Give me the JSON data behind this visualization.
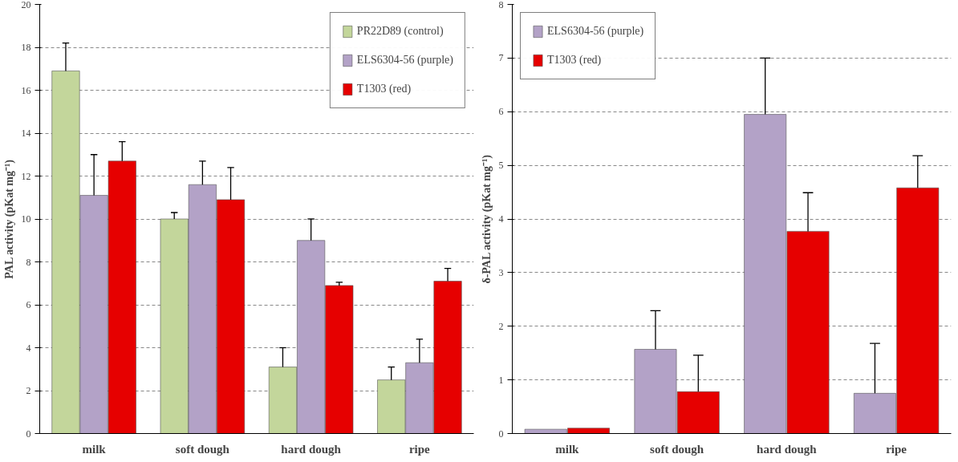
{
  "chart_data": [
    {
      "type": "bar",
      "ylabel": "PAL activity (pKat mg⁻¹)",
      "categories": [
        "milk",
        "soft dough",
        "hard dough",
        "ripe"
      ],
      "ylim": [
        0,
        20
      ],
      "yticks": [
        0,
        2,
        4,
        6,
        8,
        10,
        12,
        14,
        16,
        18,
        20
      ],
      "grid": "y",
      "legend": "top right",
      "series": [
        {
          "name": "PR22D89 (control)",
          "color": "#c3d69b",
          "values": [
            16.9,
            10.0,
            3.1,
            2.5
          ],
          "errors": [
            [
              16.9,
              18.2
            ],
            [
              10.0,
              10.3
            ],
            [
              3.1,
              4.0
            ],
            [
              2.5,
              3.1
            ]
          ]
        },
        {
          "name": "ELS6304-56 (purple)",
          "color": "#b3a2c7",
          "values": [
            11.1,
            11.6,
            9.0,
            3.3
          ],
          "errors": [
            [
              11.1,
              13.0
            ],
            [
              11.6,
              12.7
            ],
            [
              9.0,
              10.0
            ],
            [
              3.3,
              4.4
            ]
          ]
        },
        {
          "name": "T1303 (red)",
          "color": "#e60000",
          "values": [
            12.7,
            10.9,
            6.9,
            7.1
          ],
          "errors": [
            [
              12.7,
              13.6
            ],
            [
              10.9,
              12.4
            ],
            [
              6.9,
              7.05
            ],
            [
              7.1,
              7.7
            ]
          ]
        }
      ]
    },
    {
      "type": "bar",
      "ylabel": "δ-PAL activity (pKat mg⁻¹)",
      "categories": [
        "milk",
        "soft dough",
        "hard dough",
        "ripe"
      ],
      "ylim": [
        0,
        8
      ],
      "yticks": [
        0,
        1,
        2,
        3,
        4,
        5,
        6,
        7,
        8
      ],
      "grid": "y",
      "legend": "top left",
      "series": [
        {
          "name": "ELS6304-56 (purple)",
          "color": "#b3a2c7",
          "values": [
            0.08,
            1.57,
            5.95,
            0.75
          ],
          "errors": [
            null,
            [
              1.57,
              2.29
            ],
            [
              5.95,
              7.0
            ],
            [
              0.75,
              1.68
            ]
          ]
        },
        {
          "name": "T1303 (red)",
          "color": "#e60000",
          "values": [
            0.1,
            0.78,
            3.77,
            4.58
          ],
          "errors": [
            null,
            [
              0.78,
              1.46
            ],
            [
              3.77,
              4.49
            ],
            [
              4.58,
              5.18
            ]
          ]
        }
      ]
    }
  ]
}
